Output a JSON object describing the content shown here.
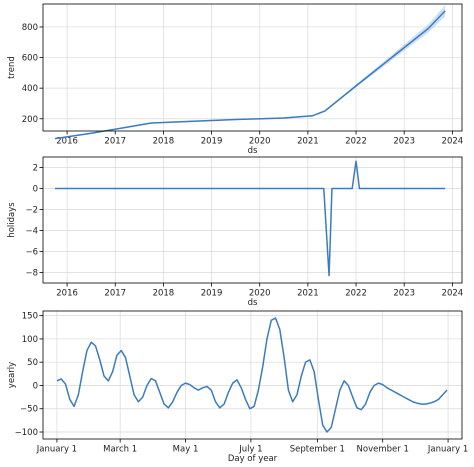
{
  "chart_data": [
    {
      "type": "line",
      "xlabel": "ds",
      "ylabel": "trend",
      "x_type": "year",
      "xlim": [
        2015.5,
        2024.2
      ],
      "ylim": [
        120,
        950
      ],
      "xticks": [
        2016,
        2017,
        2018,
        2019,
        2020,
        2021,
        2022,
        2023,
        2024
      ],
      "xtick_labels": [
        "2016",
        "2017",
        "2018",
        "2019",
        "2020",
        "2021",
        "2022",
        "2023",
        "2024"
      ],
      "yticks": [
        200,
        400,
        600,
        800
      ],
      "ytick_labels": [
        "200",
        "400",
        "600",
        "800"
      ],
      "grid": true,
      "uncertainty_band": true,
      "series": [
        {
          "color": "#3b7bbf",
          "x": [
            2015.75,
            2016.5,
            2017.25,
            2017.75,
            2018.5,
            2019.5,
            2020.5,
            2021.1,
            2021.35,
            2022.0,
            2022.8,
            2023.5,
            2023.85
          ],
          "values": [
            70,
            105,
            145,
            172,
            182,
            195,
            205,
            220,
            250,
            415,
            615,
            790,
            905
          ]
        }
      ]
    },
    {
      "type": "line",
      "xlabel": "ds",
      "ylabel": "holidays",
      "x_type": "year",
      "xlim": [
        2015.5,
        2024.2
      ],
      "ylim": [
        -9,
        3
      ],
      "xticks": [
        2016,
        2017,
        2018,
        2019,
        2020,
        2021,
        2022,
        2023,
        2024
      ],
      "xtick_labels": [
        "2016",
        "2017",
        "2018",
        "2019",
        "2020",
        "2021",
        "2022",
        "2023",
        "2024"
      ],
      "yticks": [
        2,
        0,
        -2,
        -4,
        -6,
        -8
      ],
      "ytick_labels": [
        "2",
        "0",
        "−2",
        "−4",
        "−6",
        "−8"
      ],
      "grid": true,
      "series": [
        {
          "color": "#3b7bbf",
          "x": [
            2015.75,
            2021.33,
            2021.44,
            2021.5,
            2021.6,
            2021.92,
            2022.0,
            2022.07,
            2023.85
          ],
          "values": [
            0,
            0,
            -8.3,
            0,
            0,
            0,
            2.6,
            0,
            0
          ]
        }
      ]
    },
    {
      "type": "line",
      "xlabel": "Day of year",
      "ylabel": "yearly",
      "x_type": "day_of_year",
      "xlim": [
        -13,
        378
      ],
      "ylim": [
        -115,
        160
      ],
      "xticks": [
        0,
        59,
        120,
        181,
        243,
        304,
        365
      ],
      "xtick_labels": [
        "January 1",
        "March 1",
        "May 1",
        "July 1",
        "September 1",
        "November 1",
        "January 1"
      ],
      "yticks": [
        150,
        100,
        50,
        0,
        -50,
        -100
      ],
      "ytick_labels": [
        "150",
        "100",
        "50",
        "0",
        "−50",
        "−100"
      ],
      "grid": true,
      "series": [
        {
          "color": "#3b7bbf",
          "x": [
            0,
            4,
            8,
            12,
            16,
            20,
            24,
            28,
            32,
            36,
            40,
            44,
            48,
            52,
            56,
            60,
            64,
            68,
            72,
            76,
            80,
            84,
            88,
            92,
            96,
            100,
            104,
            108,
            112,
            116,
            120,
            124,
            128,
            132,
            136,
            140,
            144,
            148,
            152,
            156,
            160,
            164,
            168,
            172,
            176,
            180,
            184,
            188,
            192,
            196,
            200,
            204,
            208,
            212,
            216,
            220,
            224,
            228,
            232,
            236,
            240,
            244,
            248,
            252,
            256,
            260,
            264,
            268,
            272,
            276,
            280,
            284,
            288,
            292,
            296,
            300,
            304,
            308,
            312,
            316,
            320,
            324,
            328,
            332,
            336,
            340,
            344,
            348,
            352,
            356,
            360,
            364
          ],
          "values": [
            10,
            14,
            3,
            -30,
            -45,
            -20,
            30,
            75,
            93,
            85,
            55,
            20,
            10,
            30,
            65,
            75,
            60,
            20,
            -20,
            -35,
            -25,
            0,
            15,
            10,
            -15,
            -40,
            -48,
            -35,
            -15,
            0,
            5,
            2,
            -5,
            -10,
            -5,
            -2,
            -10,
            -35,
            -48,
            -40,
            -15,
            5,
            12,
            -5,
            -30,
            -50,
            -45,
            -10,
            40,
            100,
            140,
            145,
            120,
            60,
            -10,
            -35,
            -20,
            20,
            50,
            55,
            30,
            -30,
            -85,
            -100,
            -90,
            -50,
            -10,
            10,
            0,
            -25,
            -48,
            -52,
            -40,
            -15,
            0,
            5,
            2,
            -5,
            -10,
            -15,
            -20,
            -25,
            -30,
            -35,
            -38,
            -40,
            -40,
            -38,
            -35,
            -30,
            -20,
            -10
          ],
          "values_note": ""
        }
      ]
    }
  ]
}
